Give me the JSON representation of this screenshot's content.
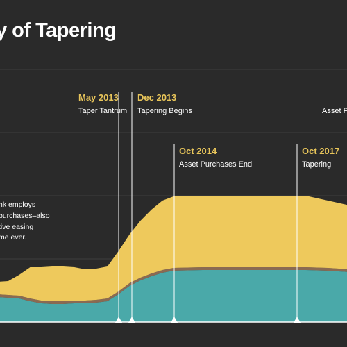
{
  "title": "y of Tapering",
  "colors": {
    "background": "#2a2a2a",
    "gridline": "#3d3d3d",
    "teal": "#4aa9a9",
    "brown": "#8a6a52",
    "yellow": "#eec95c",
    "event_line": "#ffffff",
    "date_text": "#e8c55a"
  },
  "annotation": [
    "nk employs",
    "purchases–also",
    "tive easing",
    "me ever."
  ],
  "events": [
    {
      "date": "May 2013",
      "label": "Taper Tantrum"
    },
    {
      "date": "Dec 2013",
      "label": "Tapering Begins"
    },
    {
      "date": "Oct 2014",
      "label": "Asset Purchases End"
    },
    {
      "date": "Oct 2017",
      "label": "Tapering"
    },
    {
      "date": "",
      "label": "Asset Pu"
    }
  ],
  "chart_data": {
    "type": "area",
    "stacked": true,
    "grid": true,
    "x": [
      "2010-07",
      "2010-10",
      "2011-01",
      "2011-04",
      "2011-07",
      "2011-10",
      "2012-01",
      "2012-04",
      "2012-07",
      "2012-10",
      "2013-01",
      "2013-04",
      "2013-07",
      "2013-10",
      "2014-01",
      "2014-04",
      "2014-07",
      "2014-10",
      "2015-06",
      "2016-06",
      "2017-06",
      "2017-10",
      "2018-04",
      "2018-10",
      "2019-01"
    ],
    "series": [
      {
        "values": [
          37,
          36,
          35,
          34,
          30,
          27,
          26,
          26,
          27,
          27,
          28,
          30,
          40,
          52,
          60,
          66,
          71,
          74,
          75,
          75,
          75,
          75,
          74,
          72,
          69
        ]
      },
      {
        "values": [
          4,
          4,
          4,
          4,
          4,
          4,
          4,
          4,
          4,
          4,
          4,
          4,
          4,
          4,
          4,
          4,
          4,
          4,
          4,
          4,
          4,
          4,
          4,
          4,
          4
        ]
      },
      {
        "values": [
          16,
          18,
          20,
          30,
          45,
          48,
          50,
          50,
          48,
          45,
          45,
          46,
          58,
          70,
          82,
          92,
          100,
          103,
          103,
          103,
          103,
          103,
          97,
          92,
          88
        ]
      }
    ]
  }
}
